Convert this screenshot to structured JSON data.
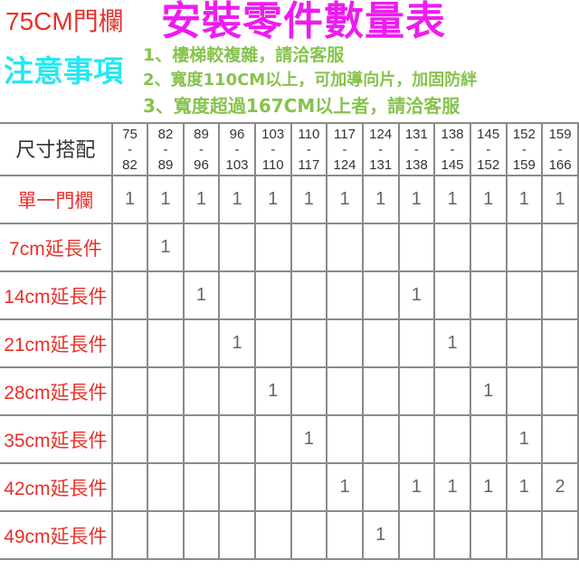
{
  "header": {
    "brand": "75CM門欄",
    "title": "安裝零件數量表",
    "notice_label": "注意事項",
    "notes": [
      "1、樓梯較複雜，請洽客服",
      "2、寬度110CM以上，可加導向片，加固防絆",
      "3、寬度超過167CM以上者，請洽客服"
    ]
  },
  "table": {
    "corner": "尺寸搭配",
    "columns": [
      [
        "75",
        "82"
      ],
      [
        "82",
        "89"
      ],
      [
        "89",
        "96"
      ],
      [
        "96",
        "103"
      ],
      [
        "103",
        "110"
      ],
      [
        "110",
        "117"
      ],
      [
        "117",
        "124"
      ],
      [
        "124",
        "131"
      ],
      [
        "131",
        "138"
      ],
      [
        "138",
        "145"
      ],
      [
        "145",
        "152"
      ],
      [
        "152",
        "159"
      ],
      [
        "159",
        "166"
      ]
    ],
    "rows": [
      {
        "label": "單一門欄",
        "values": [
          "1",
          "1",
          "1",
          "1",
          "1",
          "1",
          "1",
          "1",
          "1",
          "1",
          "1",
          "1",
          "1"
        ]
      },
      {
        "label": "7cm延長件",
        "values": [
          "",
          "1",
          "",
          "",
          "",
          "",
          "",
          "",
          "",
          "",
          "",
          "",
          ""
        ]
      },
      {
        "label": "14cm延長件",
        "values": [
          "",
          "",
          "1",
          "",
          "",
          "",
          "",
          "",
          "1",
          "",
          "",
          "",
          ""
        ]
      },
      {
        "label": "21cm延長件",
        "values": [
          "",
          "",
          "",
          "1",
          "",
          "",
          "",
          "",
          "",
          "1",
          "",
          "",
          ""
        ]
      },
      {
        "label": "28cm延長件",
        "values": [
          "",
          "",
          "",
          "",
          "1",
          "",
          "",
          "",
          "",
          "",
          "1",
          "",
          ""
        ]
      },
      {
        "label": "35cm延長件",
        "values": [
          "",
          "",
          "",
          "",
          "",
          "1",
          "",
          "",
          "",
          "",
          "",
          "1",
          ""
        ]
      },
      {
        "label": "42cm延長件",
        "values": [
          "",
          "",
          "",
          "",
          "",
          "",
          "1",
          "",
          "1",
          "1",
          "1",
          "1",
          "2"
        ]
      },
      {
        "label": "49cm延長件",
        "values": [
          "",
          "",
          "",
          "",
          "",
          "",
          "",
          "1",
          "",
          "",
          "",
          "",
          ""
        ]
      }
    ]
  },
  "colors": {
    "brand": "#e8302a",
    "title": "#ee1cf0",
    "notice": "#25e8f0",
    "notes": "#86c34c"
  }
}
